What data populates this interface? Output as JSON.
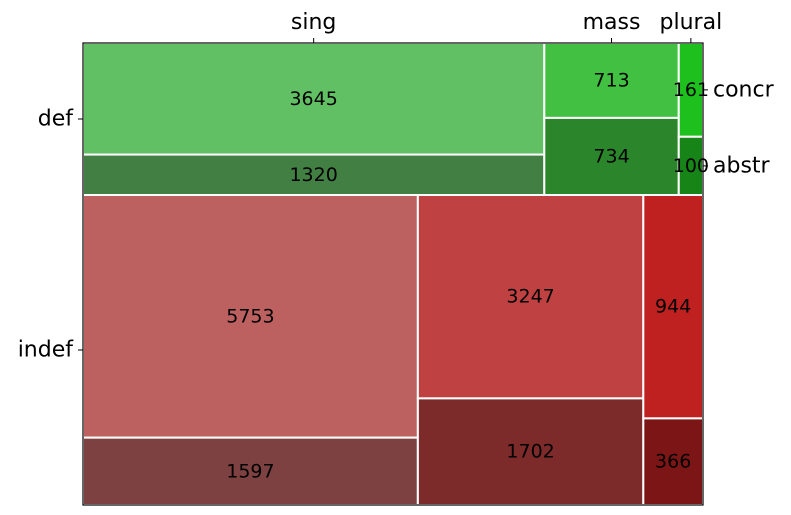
{
  "chart_data": {
    "type": "mosaic",
    "title": "",
    "x_categories": [
      "sing",
      "mass",
      "plural"
    ],
    "row_categories": [
      "def",
      "indef"
    ],
    "sub_categories": [
      "concr",
      "abstr"
    ],
    "cells": [
      {
        "row": "def",
        "col": "sing",
        "sub": "concr",
        "value": 3645,
        "color": "#62c064"
      },
      {
        "row": "def",
        "col": "sing",
        "sub": "abstr",
        "value": 1320,
        "color": "#427f43"
      },
      {
        "row": "def",
        "col": "mass",
        "sub": "concr",
        "value": 713,
        "color": "#42c042"
      },
      {
        "row": "def",
        "col": "mass",
        "sub": "abstr",
        "value": 734,
        "color": "#2b862b"
      },
      {
        "row": "def",
        "col": "plural",
        "sub": "concr",
        "value": 161,
        "color": "#1ec01e"
      },
      {
        "row": "def",
        "col": "plural",
        "sub": "abstr",
        "value": 100,
        "color": "#168416"
      },
      {
        "row": "indef",
        "col": "sing",
        "sub": "concr",
        "value": 5753,
        "color": "#bd6160"
      },
      {
        "row": "indef",
        "col": "sing",
        "sub": "abstr",
        "value": 1597,
        "color": "#7e4141"
      },
      {
        "row": "indef",
        "col": "mass",
        "sub": "concr",
        "value": 3247,
        "color": "#bf4141"
      },
      {
        "row": "indef",
        "col": "mass",
        "sub": "abstr",
        "value": 1702,
        "color": "#7c2a2a"
      },
      {
        "row": "indef",
        "col": "plural",
        "sub": "concr",
        "value": 944,
        "color": "#bf2121"
      },
      {
        "row": "indef",
        "col": "plural",
        "sub": "abstr",
        "value": 366,
        "color": "#7c1616"
      }
    ]
  }
}
